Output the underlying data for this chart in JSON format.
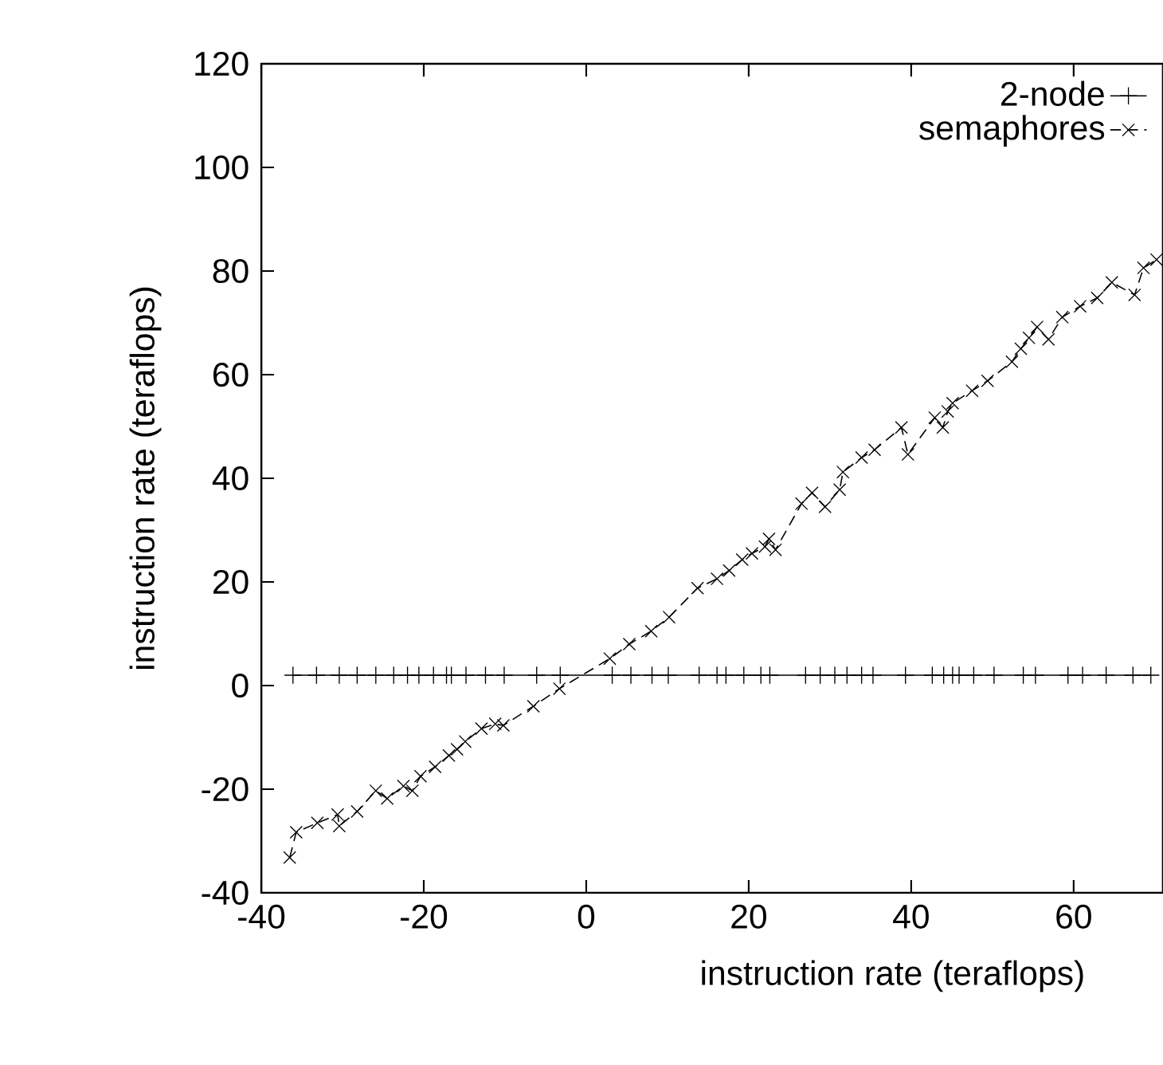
{
  "chart_data": {
    "type": "line",
    "xlabel": "instruction rate (teraflops)",
    "ylabel": "instruction rate (teraflops)",
    "xlim": [
      -40,
      71
    ],
    "ylim": [
      -40,
      120
    ],
    "xticks": [
      -40,
      -20,
      0,
      20,
      40,
      60
    ],
    "yticks": [
      -40,
      -20,
      0,
      20,
      40,
      60,
      80,
      100,
      120
    ],
    "legend": "top right",
    "grid": false,
    "series": [
      {
        "name": "2-node",
        "color": "#000000",
        "marker": "cross",
        "line_style": "solid",
        "x": [
          -36.1,
          -33.2,
          -30.4,
          -28.2,
          -25.9,
          -23.7,
          -22.0,
          -20.6,
          -18.8,
          -17.2,
          -16.6,
          -14.8,
          -12.4,
          -10.1,
          -6.1,
          -3.2,
          3.2,
          5.5,
          8.1,
          10.1,
          13.9,
          16.1,
          17.2,
          19.4,
          21.5,
          22.6,
          27.0,
          28.8,
          30.6,
          32.1,
          33.9,
          35.3,
          39.3,
          42.6,
          44.0,
          45.1,
          45.9,
          47.7,
          50.2,
          53.8,
          55.3,
          59.3,
          61.1,
          64.0,
          67.3,
          69.5
        ],
        "values": [
          2,
          2,
          2,
          2,
          2,
          2,
          2,
          2,
          2,
          2,
          2,
          2,
          2,
          2,
          2,
          2,
          2,
          2,
          2,
          2,
          2,
          2,
          2,
          2,
          2,
          2,
          2,
          2,
          2,
          2,
          2,
          2,
          2,
          2,
          2,
          2,
          2,
          2,
          2,
          2,
          2,
          2,
          2,
          2,
          2,
          2
        ]
      },
      {
        "name": "semaphores",
        "color": "#000000",
        "marker": "x",
        "line_style": "dashed",
        "x": [
          -36.5,
          -35.7,
          -33.1,
          -30.6,
          -30.4,
          -28.2,
          -25.9,
          -24.5,
          -22.5,
          -21.4,
          -20.4,
          -18.6,
          -16.9,
          -15.9,
          -14.9,
          -12.9,
          -11.2,
          -10.2,
          -6.5,
          -3.3,
          2.9,
          5.3,
          8.0,
          10.2,
          13.7,
          16.1,
          17.6,
          19.2,
          20.4,
          22.0,
          22.5,
          23.3,
          26.5,
          27.8,
          29.4,
          31.2,
          31.6,
          33.9,
          35.5,
          38.8,
          39.6,
          42.9,
          43.9,
          44.5,
          45.1,
          47.5,
          49.4,
          52.4,
          53.5,
          54.5,
          55.5,
          56.9,
          58.6,
          60.8,
          62.9,
          64.7,
          67.5,
          68.6,
          70.2
        ],
        "values": [
          -33.2,
          -28.3,
          -26.5,
          -24.9,
          -27.1,
          -24.3,
          -20.3,
          -21.8,
          -19.4,
          -20.3,
          -17.5,
          -15.7,
          -13.5,
          -12.3,
          -10.8,
          -8.3,
          -7.4,
          -7.7,
          -4.0,
          -0.6,
          5.2,
          8.0,
          10.5,
          13.2,
          18.8,
          20.6,
          22.2,
          24.3,
          25.5,
          26.8,
          28.3,
          26.2,
          35.1,
          37.2,
          34.5,
          37.8,
          41.2,
          44.0,
          45.5,
          49.8,
          44.6,
          51.7,
          49.8,
          52.9,
          54.5,
          56.9,
          58.8,
          62.5,
          65.0,
          67.1,
          69.2,
          66.8,
          71.1,
          73.2,
          74.8,
          77.8,
          75.4,
          80.6,
          82.2
        ]
      }
    ]
  }
}
